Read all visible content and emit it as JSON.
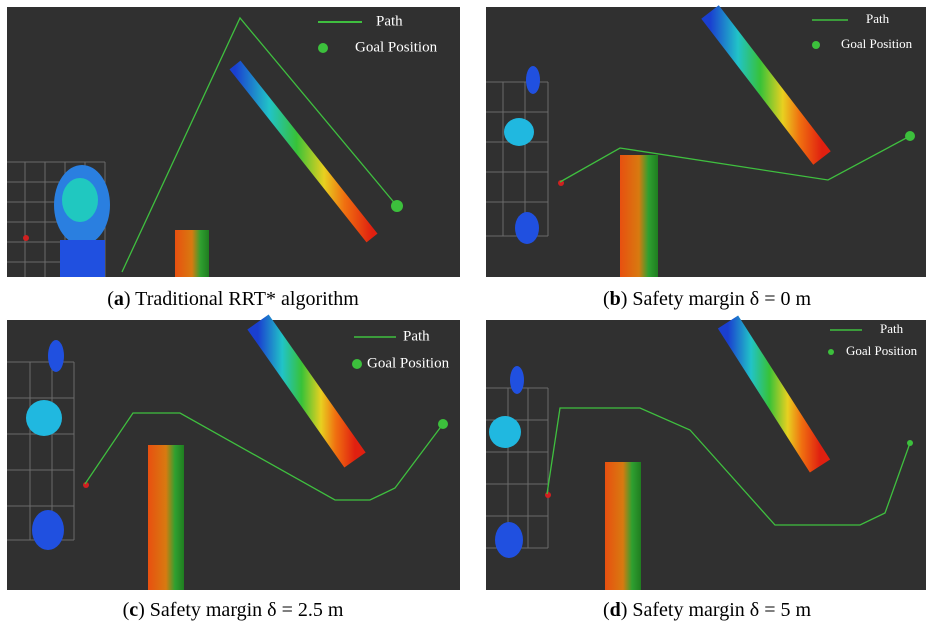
{
  "panels": [
    {
      "legend": {
        "path": "Path",
        "goal": "Goal Position"
      },
      "caption": "(a) Traditional RRT* algorithm"
    },
    {
      "legend": {
        "path": "Path",
        "goal": "Goal Position"
      },
      "caption": "(b) Safety margin δ = 0 m"
    },
    {
      "legend": {
        "path": "Path",
        "goal": "Goal Position"
      },
      "caption": "(c) Safety margin δ = 2.5 m"
    },
    {
      "legend": {
        "path": "Path",
        "goal": "Goal Position"
      },
      "caption": "(d) Safety margin δ = 5 m"
    }
  ]
}
